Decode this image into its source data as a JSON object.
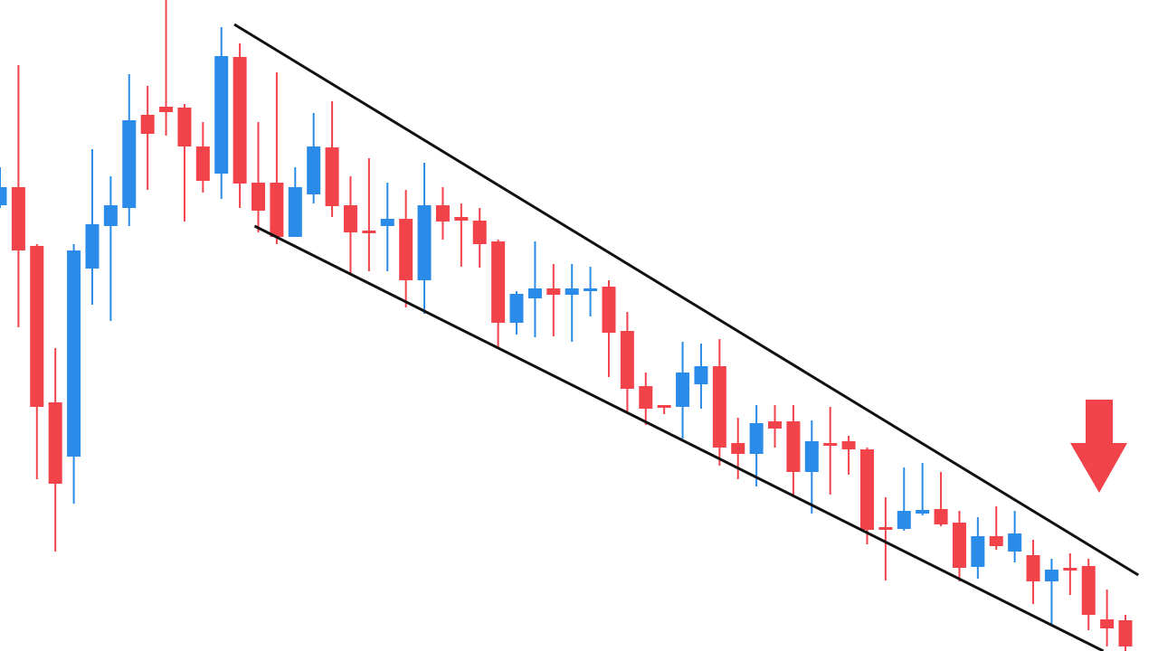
{
  "chart_data": {
    "type": "candlestick",
    "categories": [
      null,
      null,
      null,
      null,
      null,
      null,
      null,
      null,
      null,
      null,
      null,
      null,
      null,
      null,
      null,
      null,
      null,
      null,
      null,
      null,
      null,
      null,
      null,
      null,
      null,
      null,
      null,
      null,
      null,
      null,
      null,
      null,
      null,
      null,
      null,
      null,
      null,
      null,
      null,
      null,
      null,
      null,
      null,
      null,
      null,
      null,
      null,
      null,
      null,
      null,
      null,
      null,
      null,
      null,
      null,
      null,
      null,
      null,
      null,
      null,
      null,
      null
    ],
    "open": [
      493,
      513,
      448,
      275,
      215,
      423,
      470,
      490,
      593,
      602,
      601,
      558,
      528,
      657,
      518,
      518,
      458,
      505,
      557,
      493,
      465,
      470,
      478,
      410,
      493,
      480,
      476,
      453,
      363,
      390,
      401,
      394,
      398,
      403,
      354,
      293,
      272,
      270,
      295,
      315,
      230,
      218,
      254,
      254,
      198,
      230,
      232,
      223,
      137,
      135,
      152,
      157,
      142,
      93,
      127,
      110,
      106,
      77,
      92,
      94,
      35,
      34
    ],
    "high": [
      535,
      648,
      450,
      335,
      450,
      555,
      525,
      638,
      625,
      720,
      605,
      585,
      690,
      672,
      585,
      640,
      535,
      595,
      608,
      525,
      545,
      518,
      510,
      540,
      513,
      495,
      490,
      455,
      398,
      453,
      428,
      428,
      425,
      410,
      375,
      308,
      272,
      342,
      340,
      345,
      258,
      272,
      272,
      272,
      255,
      270,
      238,
      225,
      170,
      203,
      208,
      198,
      155,
      148,
      160,
      155,
      123,
      102,
      108,
      102,
      68,
      40
    ],
    "low": [
      490,
      358,
      190,
      110,
      163,
      383,
      365,
      470,
      510,
      570,
      475,
      507,
      500,
      490,
      463,
      450,
      458,
      495,
      480,
      418,
      420,
      420,
      380,
      373,
      455,
      425,
      424,
      335,
      350,
      347,
      348,
      342,
      370,
      303,
      265,
      250,
      262,
      235,
      268,
      205,
      190,
      182,
      225,
      170,
      152,
      173,
      195,
      118,
      78,
      133,
      150,
      138,
      77,
      80,
      112,
      98,
      52,
      28,
      62,
      23,
      5,
      0
    ],
    "close": [
      513,
      443,
      270,
      185,
      443,
      472,
      493,
      587,
      572,
      596,
      558,
      520,
      658,
      517,
      487,
      458,
      513,
      558,
      492,
      463,
      462,
      478,
      410,
      493,
      475,
      476,
      450,
      363,
      395,
      401,
      394,
      401,
      401,
      352,
      290,
      268,
      269,
      308,
      315,
      225,
      218,
      252,
      246,
      198,
      232,
      228,
      223,
      134,
      134,
      155,
      156,
      140,
      92,
      127,
      116,
      130,
      77,
      90,
      89,
      40,
      25,
      5
    ],
    "up_color": "#2a8be8",
    "down_color": "#f2434b",
    "xlim": [
      0,
      61
    ],
    "ylim": [
      0,
      720
    ],
    "trendlines": [
      {
        "color": "#111111",
        "x": [
          12.7,
          61.7
        ],
        "y": [
          693,
          84
        ]
      },
      {
        "color": "#111111",
        "x": [
          13.8,
          59.8
        ],
        "y": [
          470,
          0
        ]
      }
    ]
  }
}
